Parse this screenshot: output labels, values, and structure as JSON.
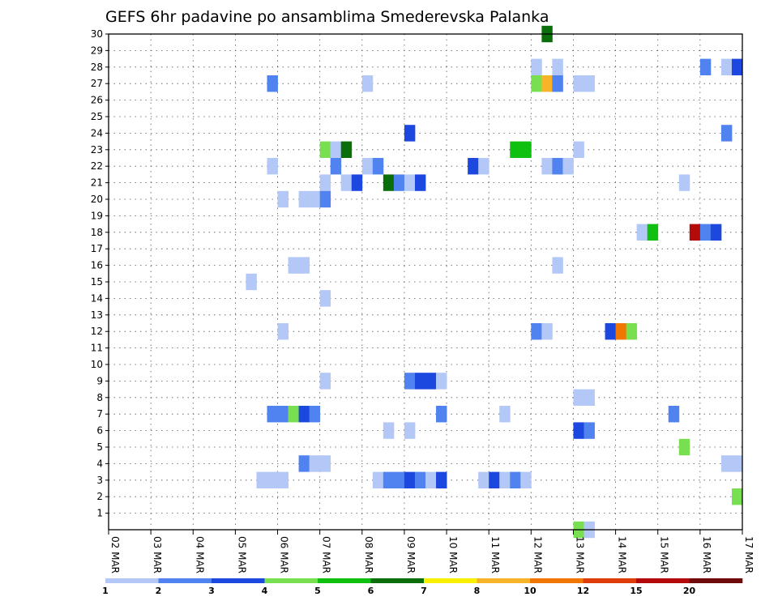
{
  "chart_data": {
    "type": "heatmap",
    "title": "GEFS 6hr padavine po ansamblima Smederevska Palanka",
    "y_ticks": [
      "1",
      "2",
      "3",
      "4",
      "5",
      "6",
      "7",
      "8",
      "9",
      "10",
      "11",
      "12",
      "13",
      "14",
      "15",
      "16",
      "17",
      "18",
      "19",
      "20",
      "21",
      "22",
      "23",
      "24",
      "25",
      "26",
      "27",
      "28",
      "29",
      "30"
    ],
    "y_range": [
      0,
      30
    ],
    "x_ticks": [
      "02 MAR",
      "03 MAR",
      "04 MAR",
      "05 MAR",
      "06 MAR",
      "07 MAR",
      "08 MAR",
      "09 MAR",
      "10 MAR",
      "11 MAR",
      "12 MAR",
      "13 MAR",
      "14 MAR",
      "15 MAR",
      "16 MAR",
      "17 MAR"
    ],
    "x_range_days": [
      0,
      15
    ],
    "grid": true,
    "colorbar": {
      "labels": [
        "1",
        "2",
        "3",
        "4",
        "5",
        "6",
        "7",
        "8",
        "10",
        "12",
        "15",
        "20"
      ],
      "colors": [
        "#b4c8f8",
        "#5082f0",
        "#1c48e0",
        "#78e050",
        "#10c010",
        "#0a6e0a",
        "#f8f000",
        "#f8b428",
        "#f07800",
        "#e03c0a",
        "#b40a0a",
        "#6e0a0a"
      ]
    },
    "cells": [
      {
        "member": 30,
        "day": 10.25,
        "class": 6
      },
      {
        "member": 28,
        "day": 10.0,
        "class": 1
      },
      {
        "member": 28,
        "day": 10.5,
        "class": 1
      },
      {
        "member": 28,
        "day": 14.0,
        "class": 2
      },
      {
        "member": 28,
        "day": 14.5,
        "class": 1
      },
      {
        "member": 28,
        "day": 14.75,
        "class": 3
      },
      {
        "member": 27,
        "day": 3.75,
        "class": 2
      },
      {
        "member": 27,
        "day": 6.0,
        "class": 1
      },
      {
        "member": 27,
        "day": 10.0,
        "class": 4
      },
      {
        "member": 27,
        "day": 10.25,
        "class": 8
      },
      {
        "member": 27,
        "day": 10.5,
        "class": 2
      },
      {
        "member": 27,
        "day": 11.0,
        "class": 1
      },
      {
        "member": 27,
        "day": 11.25,
        "class": 1
      },
      {
        "member": 24,
        "day": 7.0,
        "class": 3
      },
      {
        "member": 24,
        "day": 14.5,
        "class": 2
      },
      {
        "member": 23,
        "day": 5.0,
        "class": 4
      },
      {
        "member": 23,
        "day": 5.25,
        "class": 1
      },
      {
        "member": 23,
        "day": 5.5,
        "class": 6
      },
      {
        "member": 23,
        "day": 9.5,
        "class": 5
      },
      {
        "member": 23,
        "day": 9.75,
        "class": 5
      },
      {
        "member": 23,
        "day": 11.0,
        "class": 1
      },
      {
        "member": 22,
        "day": 3.75,
        "class": 1
      },
      {
        "member": 22,
        "day": 5.25,
        "class": 2
      },
      {
        "member": 22,
        "day": 6.0,
        "class": 1
      },
      {
        "member": 22,
        "day": 6.25,
        "class": 2
      },
      {
        "member": 22,
        "day": 8.5,
        "class": 3
      },
      {
        "member": 22,
        "day": 8.75,
        "class": 1
      },
      {
        "member": 22,
        "day": 10.25,
        "class": 1
      },
      {
        "member": 22,
        "day": 10.5,
        "class": 2
      },
      {
        "member": 22,
        "day": 10.75,
        "class": 1
      },
      {
        "member": 21,
        "day": 5.0,
        "class": 1
      },
      {
        "member": 21,
        "day": 5.5,
        "class": 1
      },
      {
        "member": 21,
        "day": 5.75,
        "class": 3
      },
      {
        "member": 21,
        "day": 6.5,
        "class": 6
      },
      {
        "member": 21,
        "day": 6.75,
        "class": 2
      },
      {
        "member": 21,
        "day": 7.0,
        "class": 1
      },
      {
        "member": 21,
        "day": 7.25,
        "class": 3
      },
      {
        "member": 21,
        "day": 13.5,
        "class": 1
      },
      {
        "member": 20,
        "day": 4.0,
        "class": 1
      },
      {
        "member": 20,
        "day": 4.5,
        "class": 1
      },
      {
        "member": 20,
        "day": 4.75,
        "class": 1
      },
      {
        "member": 20,
        "day": 5.0,
        "class": 2
      },
      {
        "member": 18,
        "day": 12.5,
        "class": 1
      },
      {
        "member": 18,
        "day": 12.75,
        "class": 5
      },
      {
        "member": 18,
        "day": 13.75,
        "class": 11
      },
      {
        "member": 18,
        "day": 14.0,
        "class": 2
      },
      {
        "member": 18,
        "day": 14.25,
        "class": 3
      },
      {
        "member": 16,
        "day": 4.25,
        "class": 1
      },
      {
        "member": 16,
        "day": 4.5,
        "class": 1
      },
      {
        "member": 16,
        "day": 10.5,
        "class": 1
      },
      {
        "member": 15,
        "day": 3.25,
        "class": 1
      },
      {
        "member": 14,
        "day": 5.0,
        "class": 1
      },
      {
        "member": 12,
        "day": 4.0,
        "class": 1
      },
      {
        "member": 12,
        "day": 10.0,
        "class": 2
      },
      {
        "member": 12,
        "day": 10.25,
        "class": 1
      },
      {
        "member": 12,
        "day": 11.75,
        "class": 3
      },
      {
        "member": 12,
        "day": 12.0,
        "class": 9
      },
      {
        "member": 12,
        "day": 12.25,
        "class": 4
      },
      {
        "member": 9,
        "day": 5.0,
        "class": 1
      },
      {
        "member": 9,
        "day": 7.0,
        "class": 2
      },
      {
        "member": 9,
        "day": 7.25,
        "class": 3
      },
      {
        "member": 9,
        "day": 7.5,
        "class": 3
      },
      {
        "member": 9,
        "day": 7.75,
        "class": 1
      },
      {
        "member": 8,
        "day": 11.0,
        "class": 1
      },
      {
        "member": 8,
        "day": 11.25,
        "class": 1
      },
      {
        "member": 7,
        "day": 3.75,
        "class": 2
      },
      {
        "member": 7,
        "day": 4.0,
        "class": 2
      },
      {
        "member": 7,
        "day": 4.25,
        "class": 4
      },
      {
        "member": 7,
        "day": 4.5,
        "class": 3
      },
      {
        "member": 7,
        "day": 4.75,
        "class": 2
      },
      {
        "member": 7,
        "day": 7.75,
        "class": 2
      },
      {
        "member": 7,
        "day": 9.25,
        "class": 1
      },
      {
        "member": 7,
        "day": 13.25,
        "class": 2
      },
      {
        "member": 6,
        "day": 6.5,
        "class": 1
      },
      {
        "member": 6,
        "day": 7.0,
        "class": 1
      },
      {
        "member": 6,
        "day": 11.0,
        "class": 3
      },
      {
        "member": 6,
        "day": 11.25,
        "class": 2
      },
      {
        "member": 5,
        "day": 13.5,
        "class": 4
      },
      {
        "member": 4,
        "day": 4.5,
        "class": 2
      },
      {
        "member": 4,
        "day": 4.75,
        "class": 1
      },
      {
        "member": 4,
        "day": 5.0,
        "class": 1
      },
      {
        "member": 4,
        "day": 14.5,
        "class": 1
      },
      {
        "member": 4,
        "day": 14.75,
        "class": 1
      },
      {
        "member": 3,
        "day": 3.5,
        "class": 1
      },
      {
        "member": 3,
        "day": 3.75,
        "class": 1
      },
      {
        "member": 3,
        "day": 4.0,
        "class": 1
      },
      {
        "member": 3,
        "day": 6.25,
        "class": 1
      },
      {
        "member": 3,
        "day": 6.5,
        "class": 2
      },
      {
        "member": 3,
        "day": 6.75,
        "class": 2
      },
      {
        "member": 3,
        "day": 7.0,
        "class": 3
      },
      {
        "member": 3,
        "day": 7.25,
        "class": 2
      },
      {
        "member": 3,
        "day": 7.5,
        "class": 1
      },
      {
        "member": 3,
        "day": 7.75,
        "class": 3
      },
      {
        "member": 3,
        "day": 8.75,
        "class": 1
      },
      {
        "member": 3,
        "day": 9.0,
        "class": 3
      },
      {
        "member": 3,
        "day": 9.25,
        "class": 1
      },
      {
        "member": 3,
        "day": 9.5,
        "class": 2
      },
      {
        "member": 3,
        "day": 9.75,
        "class": 1
      },
      {
        "member": 2,
        "day": 14.75,
        "class": 4
      },
      {
        "member": 0,
        "day": 11.0,
        "class": 4
      },
      {
        "member": 0,
        "day": 11.25,
        "class": 1
      }
    ]
  }
}
